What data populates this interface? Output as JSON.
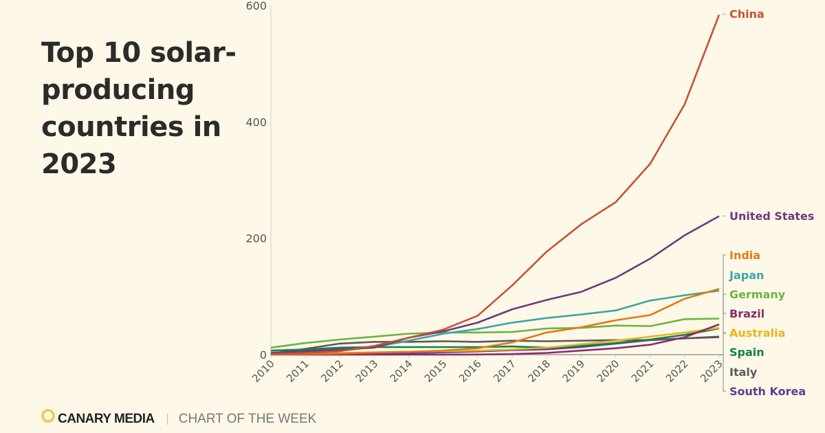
{
  "chart_data": {
    "type": "line",
    "title": "Top 10 solar-producing countries in 2023",
    "xlabel": "",
    "ylabel": "",
    "x": [
      2010,
      2011,
      2012,
      2013,
      2014,
      2015,
      2016,
      2017,
      2018,
      2019,
      2020,
      2021,
      2022,
      2023
    ],
    "x_tick_labels": [
      "2010",
      "2011",
      "2012",
      "2013",
      "2014",
      "2015",
      "2016",
      "2017",
      "2018",
      "2019",
      "2020",
      "2021",
      "2022",
      "2023"
    ],
    "ylim": [
      0,
      600
    ],
    "y_ticks": [
      0,
      200,
      400,
      600
    ],
    "y_tick_labels": [
      "0",
      "200",
      "400",
      "600"
    ],
    "grid": false,
    "legend": "right-end labels",
    "series": [
      {
        "name": "China",
        "color": "#c94f37",
        "values": [
          1,
          3,
          6,
          15,
          29,
          43,
          67,
          119,
          177,
          224,
          262,
          328,
          430,
          584
        ]
      },
      {
        "name": "United States",
        "color": "#6b3a7d",
        "values": [
          3,
          6,
          9,
          12,
          29,
          40,
          55,
          78,
          94,
          108,
          132,
          165,
          205,
          238
        ]
      },
      {
        "name": "India",
        "color": "#e07b16",
        "values": [
          0.1,
          1,
          2,
          3.5,
          5,
          7,
          11,
          21,
          38,
          47,
          59,
          68,
          96,
          113
        ]
      },
      {
        "name": "Japan",
        "color": "#3aa6a6",
        "values": [
          3.5,
          4.5,
          6.5,
          13,
          24,
          36,
          44,
          55,
          63,
          69,
          76,
          93,
          102,
          110
        ]
      },
      {
        "name": "Germany",
        "color": "#6db33f",
        "values": [
          12,
          20,
          26,
          31,
          36,
          38,
          38,
          39,
          45,
          46,
          50,
          49,
          61,
          62
        ]
      },
      {
        "name": "Brazil",
        "color": "#8e2a6b",
        "values": [
          0,
          0,
          0,
          0,
          0.1,
          0.1,
          0.2,
          1,
          3,
          7,
          11,
          17,
          30,
          52
        ]
      },
      {
        "name": "Australia",
        "color": "#e8b520",
        "values": [
          0.1,
          1.5,
          3,
          4,
          5,
          6,
          7,
          9,
          12,
          18,
          24,
          31,
          38,
          46
        ]
      },
      {
        "name": "Spain",
        "color": "#11804f",
        "values": [
          7,
          9,
          12,
          13,
          13,
          13,
          13,
          14,
          12,
          15,
          20,
          26,
          34,
          45
        ]
      },
      {
        "name": "Italy",
        "color": "#5a5a5a",
        "values": [
          2,
          10,
          19,
          22,
          22,
          23,
          22,
          24,
          23,
          24,
          25,
          25,
          28,
          31
        ]
      },
      {
        "name": "South Korea",
        "color": "#5b3e96",
        "values": [
          0.8,
          0.9,
          1.1,
          1.6,
          2.6,
          4,
          5.5,
          7.7,
          9.2,
          13,
          19,
          25,
          28,
          30
        ]
      }
    ]
  },
  "footer": {
    "brand": "CANARY MEDIA",
    "subtitle": "CHART OF THE WEEK"
  }
}
